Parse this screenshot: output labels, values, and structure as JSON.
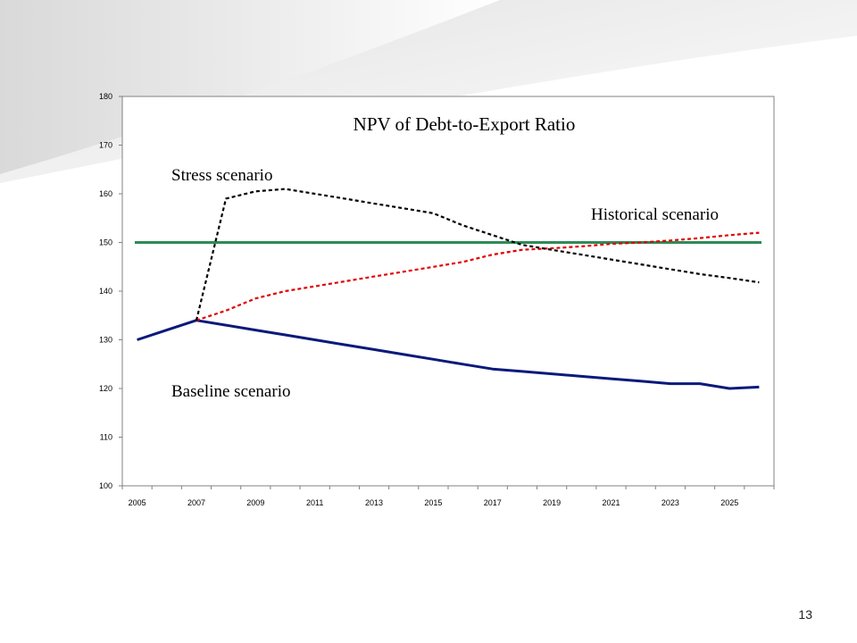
{
  "slide": {
    "page_number": "13"
  },
  "chart_data": {
    "type": "line",
    "title": "NPV of Debt-to-Export Ratio",
    "xlabel": "",
    "ylabel": "",
    "xlim": [
      2005,
      2026
    ],
    "ylim": [
      100,
      180
    ],
    "x_tick_labels": [
      "2005",
      "2007",
      "2009",
      "2011",
      "2013",
      "2015",
      "2017",
      "2019",
      "2021",
      "2023",
      "2025"
    ],
    "y_tick_labels": [
      "100",
      "110",
      "120",
      "130",
      "140",
      "150",
      "160",
      "170",
      "180"
    ],
    "grid": false,
    "legend": "none",
    "series": [
      {
        "name": "Baseline scenario",
        "color": "#0a1a7a",
        "style": "solid",
        "x": [
          2005,
          2006,
          2007,
          2008,
          2009,
          2010,
          2011,
          2012,
          2013,
          2014,
          2015,
          2016,
          2017,
          2018,
          2019,
          2020,
          2021,
          2022,
          2023,
          2024,
          2025,
          2026
        ],
        "y": [
          130,
          132,
          134,
          133,
          132,
          131,
          130,
          129,
          128,
          127,
          126,
          125,
          124,
          123.5,
          123,
          122.5,
          122,
          121.5,
          121,
          121,
          120,
          120.3
        ]
      },
      {
        "name": "Stress scenario",
        "color": "#000000",
        "style": "dotted",
        "x": [
          2007,
          2008,
          2009,
          2010,
          2011,
          2012,
          2013,
          2014,
          2015,
          2016,
          2017,
          2018,
          2019,
          2020,
          2021,
          2022,
          2023,
          2024,
          2025,
          2026
        ],
        "y": [
          134,
          159,
          160.5,
          161,
          160,
          159,
          158,
          157,
          156,
          153.5,
          151.5,
          149.5,
          148.5,
          147.5,
          146.5,
          145.5,
          144.5,
          143.5,
          142.7,
          141.8
        ]
      },
      {
        "name": "Historical scenario",
        "color": "#e00000",
        "style": "dotted",
        "x": [
          2007,
          2008,
          2009,
          2010,
          2011,
          2012,
          2013,
          2014,
          2015,
          2016,
          2017,
          2018,
          2019,
          2020,
          2021,
          2022,
          2023,
          2024,
          2025,
          2026
        ],
        "y": [
          134,
          136,
          138.5,
          140,
          141,
          142,
          143,
          144,
          145,
          146,
          147.5,
          148.5,
          148.8,
          149.2,
          149.7,
          150,
          150.4,
          150.9,
          151.5,
          152
        ]
      },
      {
        "name": "",
        "color": "#2e8b57",
        "style": "solid",
        "x": [
          2005,
          2026
        ],
        "y": [
          150,
          150
        ]
      }
    ]
  }
}
